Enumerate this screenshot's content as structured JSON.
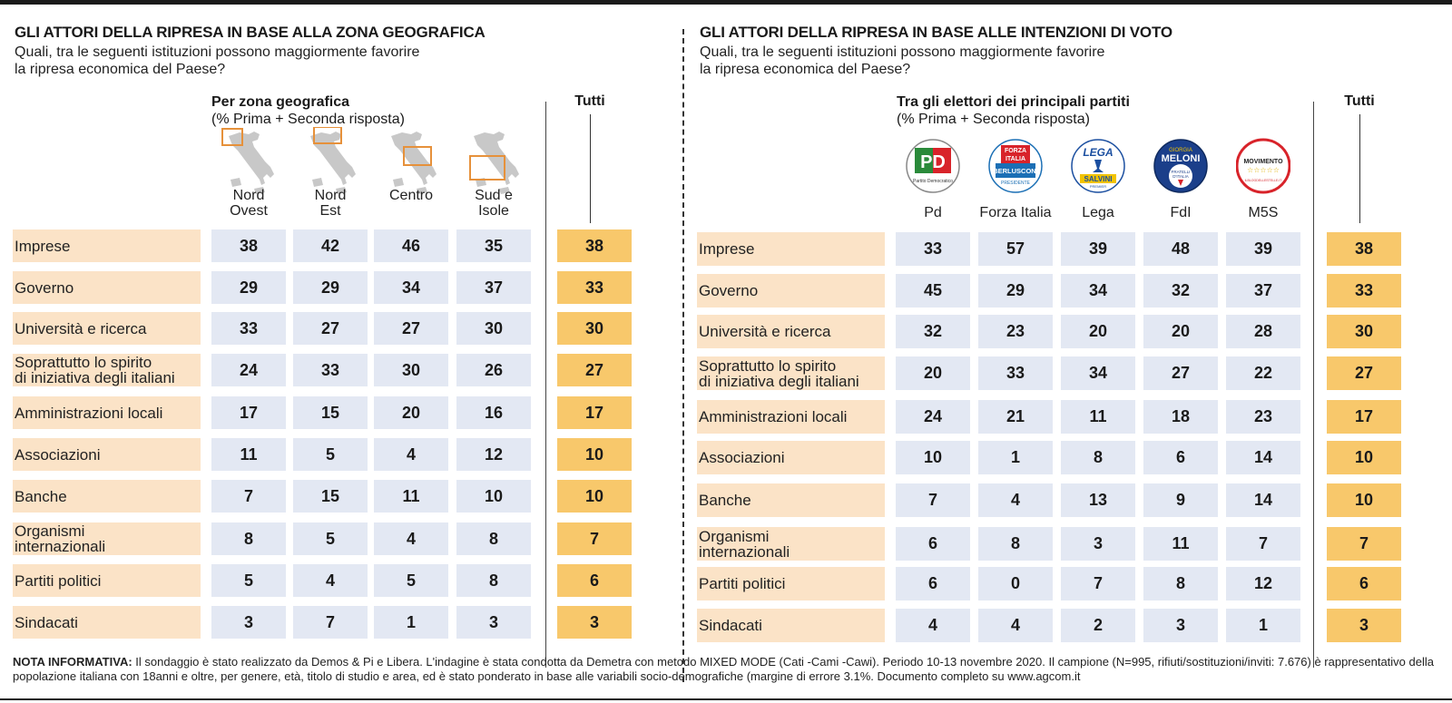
{
  "colors": {
    "label_bg": "#fbe3c7",
    "cell_bg": "#e3e8f3",
    "total_bg": "#f8c86b",
    "map_box": "#e6913b"
  },
  "left": {
    "title": "GLI ATTORI DELLA RIPRESA IN BASE ALLA ZONA GEOGRAFICA",
    "question_line1": "Quali, tra le seguenti istituzioni possono maggiormente favorire",
    "question_line2": "la ripresa economica del Paese?",
    "group_title": "Per zona geografica",
    "group_note": "(% Prima + Seconda risposta)",
    "tutti": "Tutti",
    "columns": [
      {
        "line1": "Nord",
        "line2": "Ovest",
        "icon": "italy-map-northwest-icon"
      },
      {
        "line1": "Nord",
        "line2": "Est",
        "icon": "italy-map-northeast-icon"
      },
      {
        "line1": "Centro",
        "line2": "",
        "icon": "italy-map-center-icon"
      },
      {
        "line1": "Sud e",
        "line2": "Isole",
        "icon": "italy-map-south-islands-icon"
      }
    ]
  },
  "right": {
    "title": "GLI ATTORI DELLA RIPRESA IN BASE ALLE INTENZIONI DI VOTO",
    "question_line1": "Quali, tra le seguenti istituzioni possono maggiormente favorire",
    "question_line2": "la ripresa economica del Paese?",
    "group_title": "Tra gli elettori dei principali partiti",
    "group_note": "(% Prima + Seconda risposta)",
    "tutti": "Tutti",
    "columns": [
      {
        "label": "Pd",
        "icon": "pd-logo-icon",
        "logo_text": [
          "PD",
          "Partito Democratico"
        ]
      },
      {
        "label": "Forza Italia",
        "icon": "forza-italia-logo-icon",
        "logo_text": [
          "FORZA",
          "ITALIA",
          "BERLUSCONI",
          "PRESIDENTE"
        ]
      },
      {
        "label": "Lega",
        "icon": "lega-logo-icon",
        "logo_text": [
          "LEGA",
          "SALVINI",
          "PREMIER"
        ]
      },
      {
        "label": "FdI",
        "icon": "fdi-logo-icon",
        "logo_text": [
          "GIORGIA",
          "MELONI",
          "FRATELLI",
          "D'ITALIA"
        ]
      },
      {
        "label": "M5S",
        "icon": "m5s-logo-icon",
        "logo_text": [
          "MOVIMENTO",
          "☆☆☆☆☆",
          "ILBLOGDELLESTELLE.IT"
        ]
      }
    ]
  },
  "chart_data": [
    {
      "type": "table",
      "title": "GLI ATTORI DELLA RIPRESA IN BASE ALLA ZONA GEOGRAFICA",
      "rows": [
        "Imprese",
        "Governo",
        "Università e ricerca",
        "Soprattutto lo spirito di iniziativa degli italiani",
        "Amministrazioni locali",
        "Associazioni",
        "Banche",
        "Organismi internazionali",
        "Partiti politici",
        "Sindacati"
      ],
      "columns": [
        "Nord Ovest",
        "Nord Est",
        "Centro",
        "Sud e Isole",
        "Tutti"
      ],
      "values": [
        [
          "38",
          "42",
          "46",
          "35",
          "38"
        ],
        [
          "29",
          "29",
          "34",
          "37",
          "33"
        ],
        [
          "33",
          "27",
          "27",
          "30",
          "30"
        ],
        [
          "24",
          "33",
          "30",
          "26",
          "27"
        ],
        [
          "17",
          "15",
          "20",
          "16",
          "17"
        ],
        [
          "11",
          "5",
          "4",
          "12",
          "10"
        ],
        [
          "7",
          "15",
          "11",
          "10",
          "10"
        ],
        [
          "8",
          "5",
          "4",
          "8",
          "7"
        ],
        [
          "5",
          "4",
          "5",
          "8",
          "6"
        ],
        [
          "3",
          "7",
          "1",
          "3",
          "3"
        ]
      ]
    },
    {
      "type": "table",
      "title": "GLI ATTORI DELLA RIPRESA IN BASE ALLE INTENZIONI DI VOTO",
      "rows": [
        "Imprese",
        "Governo",
        "Università e ricerca",
        "Soprattutto lo spirito di iniziativa degli italiani",
        "Amministrazioni locali",
        "Associazioni",
        "Banche",
        "Organismi internazionali",
        "Partiti politici",
        "Sindacati"
      ],
      "columns": [
        "Pd",
        "Forza Italia",
        "Lega",
        "FdI",
        "M5S",
        "Tutti"
      ],
      "values": [
        [
          "33",
          "57",
          "39",
          "48",
          "39",
          "38"
        ],
        [
          "45",
          "29",
          "34",
          "32",
          "37",
          "33"
        ],
        [
          "32",
          "23",
          "20",
          "20",
          "28",
          "30"
        ],
        [
          "20",
          "33",
          "34",
          "27",
          "22",
          "27"
        ],
        [
          "24",
          "21",
          "11",
          "18",
          "23",
          "17"
        ],
        [
          "10",
          "1",
          "8",
          "6",
          "14",
          "10"
        ],
        [
          "7",
          "4",
          "13",
          "9",
          "14",
          "10"
        ],
        [
          "6",
          "8",
          "3",
          "11",
          "7",
          "7"
        ],
        [
          "6",
          "0",
          "7",
          "8",
          "12",
          "6"
        ],
        [
          "4",
          "4",
          "2",
          "3",
          "1",
          "3"
        ]
      ]
    }
  ],
  "row_labels": [
    {
      "line1": "Imprese",
      "line2": ""
    },
    {
      "line1": "Governo",
      "line2": ""
    },
    {
      "line1": "Università e ricerca",
      "line2": ""
    },
    {
      "line1": "Soprattutto lo spirito",
      "line2": "di iniziativa degli italiani"
    },
    {
      "line1": "Amministrazioni locali",
      "line2": ""
    },
    {
      "line1": "Associazioni",
      "line2": ""
    },
    {
      "line1": "Banche",
      "line2": ""
    },
    {
      "line1": "Organismi",
      "line2": "internazionali"
    },
    {
      "line1": "Partiti politici",
      "line2": ""
    },
    {
      "line1": "Sindacati",
      "line2": ""
    }
  ],
  "note": {
    "label": "NOTA INFORMATIVA:",
    "text": "Il sondaggio è stato realizzato da Demos & Pi e Libera. L'indagine è stata condotta da Demetra con metodo MIXED MODE (Cati -Cami -Cawi). Periodo 10-13 novembre 2020. Il campione (N=995, rifiuti/sostituzioni/inviti: 7.676) è rappresentativo della popolazione italiana con 18anni e oltre, per genere, età, titolo di studio e area, ed è stato ponderato in base alle variabili socio-demografiche (margine di errore 3.1%. Documento completo su www.agcom.it"
  }
}
